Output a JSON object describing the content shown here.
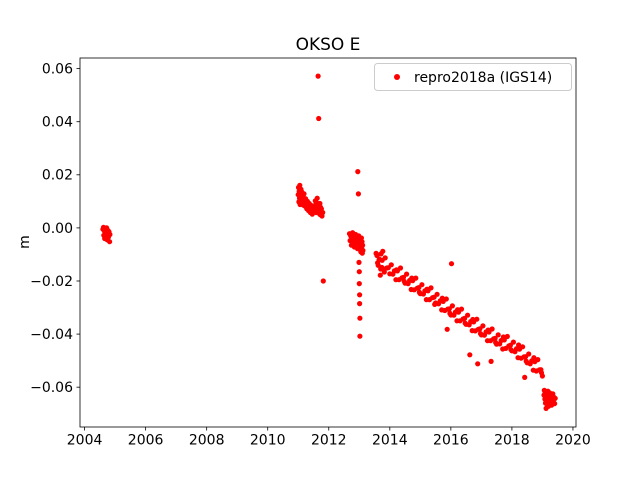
{
  "title": "OKSO E",
  "colors": {
    "marker": "#ff0000",
    "axis": "#000000",
    "background": "#ffffff",
    "legend_border": "#cccccc"
  },
  "legend": {
    "label": "repro2018a (IGS14)",
    "marker_icon": "red-dot"
  },
  "chart_data": {
    "type": "scatter",
    "title": "OKSO E",
    "xlabel": "",
    "ylabel": "m",
    "grid": false,
    "legend_position": "upper right",
    "xlim": [
      2003.85,
      2020.1
    ],
    "ylim": [
      -0.075,
      0.064
    ],
    "xticks": [
      2004,
      2006,
      2008,
      2010,
      2012,
      2014,
      2016,
      2018,
      2020
    ],
    "yticks": [
      -0.06,
      -0.04,
      -0.02,
      0.0,
      0.02,
      0.04,
      0.06
    ],
    "series": [
      {
        "name": "repro2018a (IGS14)",
        "color": "#ff0000",
        "marker": "circle",
        "points": [
          [
            2004.6,
            -0.0005
          ],
          [
            2004.62,
            0.0002
          ],
          [
            2004.63,
            -0.0028
          ],
          [
            2004.65,
            -0.0012
          ],
          [
            2004.66,
            -0.004
          ],
          [
            2004.68,
            -0.0008
          ],
          [
            2004.69,
            -0.0032
          ],
          [
            2004.71,
            -0.0018
          ],
          [
            2004.72,
            0.0
          ],
          [
            2004.74,
            -0.0045
          ],
          [
            2004.75,
            -0.0022
          ],
          [
            2004.77,
            -0.001
          ],
          [
            2004.78,
            -0.0035
          ],
          [
            2004.8,
            -0.0015
          ],
          [
            2004.82,
            -0.0052
          ],
          [
            2004.83,
            -0.0025
          ],
          [
            2011.0,
            0.0125
          ],
          [
            2011.01,
            0.0152
          ],
          [
            2011.02,
            0.0098
          ],
          [
            2011.03,
            0.0138
          ],
          [
            2011.04,
            0.0112
          ],
          [
            2011.05,
            0.016
          ],
          [
            2011.06,
            0.0088
          ],
          [
            2011.07,
            0.013
          ],
          [
            2011.08,
            0.0105
          ],
          [
            2011.09,
            0.0145
          ],
          [
            2011.1,
            0.0118
          ],
          [
            2011.11,
            0.0092
          ],
          [
            2011.12,
            0.0135
          ],
          [
            2011.13,
            0.0108
          ],
          [
            2011.14,
            0.0122
          ],
          [
            2011.15,
            0.0095
          ],
          [
            2011.16,
            0.0115
          ],
          [
            2011.17,
            0.0086
          ],
          [
            2011.18,
            0.0104
          ],
          [
            2011.19,
            0.0128
          ],
          [
            2011.2,
            0.0096
          ],
          [
            2011.22,
            0.0082
          ],
          [
            2011.24,
            0.011
          ],
          [
            2011.26,
            0.009
          ],
          [
            2011.28,
            0.0072
          ],
          [
            2011.3,
            0.01
          ],
          [
            2011.32,
            0.0084
          ],
          [
            2011.34,
            0.0065
          ],
          [
            2011.36,
            0.0092
          ],
          [
            2011.38,
            0.0076
          ],
          [
            2011.4,
            0.0058
          ],
          [
            2011.42,
            0.0085
          ],
          [
            2011.44,
            0.0068
          ],
          [
            2011.46,
            0.0052
          ],
          [
            2011.48,
            0.0078
          ],
          [
            2011.5,
            0.0062
          ],
          [
            2011.55,
            0.008
          ],
          [
            2011.56,
            0.0102
          ],
          [
            2011.57,
            0.0068
          ],
          [
            2011.58,
            0.009
          ],
          [
            2011.59,
            0.0058
          ],
          [
            2011.6,
            0.0095
          ],
          [
            2011.61,
            0.0075
          ],
          [
            2011.62,
            0.0112
          ],
          [
            2011.63,
            0.0062
          ],
          [
            2011.64,
            0.0088
          ],
          [
            2011.65,
            0.0572
          ],
          [
            2011.66,
            0.007
          ],
          [
            2011.67,
            0.0412
          ],
          [
            2011.68,
            0.0055
          ],
          [
            2011.69,
            0.0082
          ],
          [
            2011.7,
            0.0065
          ],
          [
            2011.71,
            0.0092
          ],
          [
            2011.72,
            0.005
          ],
          [
            2011.73,
            0.0078
          ],
          [
            2011.74,
            0.006
          ],
          [
            2011.76,
            0.0072
          ],
          [
            2011.78,
            0.0045
          ],
          [
            2011.8,
            0.0058
          ],
          [
            2011.82,
            -0.02
          ],
          [
            2012.68,
            -0.0022
          ],
          [
            2012.7,
            -0.0048
          ],
          [
            2012.72,
            -0.003
          ],
          [
            2012.74,
            -0.0065
          ],
          [
            2012.76,
            -0.0038
          ],
          [
            2012.78,
            -0.0018
          ],
          [
            2012.8,
            -0.0055
          ],
          [
            2012.82,
            -0.0035
          ],
          [
            2012.84,
            -0.0072
          ],
          [
            2012.86,
            -0.0045
          ],
          [
            2012.88,
            -0.0025
          ],
          [
            2012.9,
            -0.006
          ],
          [
            2012.92,
            -0.004
          ],
          [
            2012.94,
            -0.0078
          ],
          [
            2012.95,
            0.0212
          ],
          [
            2012.96,
            -0.0052
          ],
          [
            2012.97,
            0.0128
          ],
          [
            2012.98,
            -0.003
          ],
          [
            2012.99,
            -0.013
          ],
          [
            2013.0,
            -0.0165
          ],
          [
            2013.0,
            -0.021
          ],
          [
            2013.01,
            -0.0252
          ],
          [
            2013.01,
            -0.0285
          ],
          [
            2013.02,
            -0.034
          ],
          [
            2013.02,
            -0.0408
          ],
          [
            2013.03,
            -0.0068
          ],
          [
            2013.04,
            -0.0045
          ],
          [
            2013.05,
            -0.009
          ],
          [
            2013.06,
            -0.0058
          ],
          [
            2013.07,
            -0.0038
          ],
          [
            2013.08,
            -0.0075
          ],
          [
            2013.09,
            -0.0052
          ],
          [
            2013.1,
            -0.0095
          ],
          [
            2013.11,
            -0.0065
          ],
          [
            2013.12,
            -0.0085
          ],
          [
            2013.55,
            -0.0096
          ],
          [
            2013.6,
            -0.0132
          ],
          [
            2013.65,
            -0.012
          ],
          [
            2013.7,
            -0.0155
          ],
          [
            2013.75,
            -0.0122
          ],
          [
            2013.8,
            -0.0156
          ],
          [
            2013.85,
            -0.0113
          ],
          [
            2013.9,
            -0.0151
          ],
          [
            2013.95,
            -0.015
          ],
          [
            2014.0,
            -0.0173
          ],
          [
            2013.58,
            -0.0104
          ],
          [
            2013.62,
            -0.0141
          ],
          [
            2013.66,
            -0.0118
          ],
          [
            2013.69,
            -0.0178
          ],
          [
            2013.71,
            -0.0098
          ],
          [
            2013.74,
            -0.0149
          ],
          [
            2013.77,
            -0.0088
          ],
          [
            2013.82,
            -0.0166
          ],
          [
            2014.05,
            -0.0139
          ],
          [
            2014.1,
            -0.0174
          ],
          [
            2014.15,
            -0.0162
          ],
          [
            2014.2,
            -0.0195
          ],
          [
            2014.25,
            -0.0162
          ],
          [
            2014.3,
            -0.0195
          ],
          [
            2014.35,
            -0.0151
          ],
          [
            2014.4,
            -0.0188
          ],
          [
            2014.45,
            -0.0186
          ],
          [
            2014.5,
            -0.0208
          ],
          [
            2014.55,
            -0.0174
          ],
          [
            2014.6,
            -0.021
          ],
          [
            2014.65,
            -0.0198
          ],
          [
            2014.7,
            -0.0232
          ],
          [
            2014.75,
            -0.0199
          ],
          [
            2014.8,
            -0.0233
          ],
          [
            2014.85,
            -0.0189
          ],
          [
            2014.9,
            -0.0227
          ],
          [
            2014.95,
            -0.0225
          ],
          [
            2015.0,
            -0.0248
          ],
          [
            2015.05,
            -0.0214
          ],
          [
            2015.1,
            -0.0249
          ],
          [
            2015.15,
            -0.0237
          ],
          [
            2015.2,
            -0.027
          ],
          [
            2015.25,
            -0.0237
          ],
          [
            2015.3,
            -0.027
          ],
          [
            2015.35,
            -0.0226
          ],
          [
            2015.4,
            -0.0263
          ],
          [
            2015.45,
            -0.0261
          ],
          [
            2015.5,
            -0.0283
          ],
          [
            2015.55,
            -0.025
          ],
          [
            2015.6,
            -0.0286
          ],
          [
            2015.65,
            -0.0275
          ],
          [
            2015.7,
            -0.0309
          ],
          [
            2015.75,
            -0.0277
          ],
          [
            2015.8,
            -0.0311
          ],
          [
            2015.85,
            -0.0268
          ],
          [
            2015.9,
            -0.0306
          ],
          [
            2015.95,
            -0.0305
          ],
          [
            2016.0,
            -0.0328
          ],
          [
            2016.05,
            -0.0294
          ],
          [
            2016.1,
            -0.0329
          ],
          [
            2016.15,
            -0.0317
          ],
          [
            2016.2,
            -0.035
          ],
          [
            2016.25,
            -0.0317
          ],
          [
            2016.3,
            -0.035
          ],
          [
            2016.35,
            -0.0306
          ],
          [
            2016.4,
            -0.0343
          ],
          [
            2016.45,
            -0.0341
          ],
          [
            2016.5,
            -0.0363
          ],
          [
            2016.55,
            -0.0329
          ],
          [
            2016.6,
            -0.0365
          ],
          [
            2016.65,
            -0.0353
          ],
          [
            2016.7,
            -0.0387
          ],
          [
            2016.75,
            -0.0354
          ],
          [
            2016.8,
            -0.0388
          ],
          [
            2016.85,
            -0.0344
          ],
          [
            2016.9,
            -0.0382
          ],
          [
            2016.95,
            -0.038
          ],
          [
            2017.0,
            -0.0403
          ],
          [
            2017.05,
            -0.0369
          ],
          [
            2017.1,
            -0.0404
          ],
          [
            2017.15,
            -0.0392
          ],
          [
            2017.2,
            -0.0425
          ],
          [
            2017.25,
            -0.0392
          ],
          [
            2017.3,
            -0.0425
          ],
          [
            2017.35,
            -0.0381
          ],
          [
            2017.4,
            -0.0418
          ],
          [
            2017.45,
            -0.0416
          ],
          [
            2017.5,
            -0.0438
          ],
          [
            2017.55,
            -0.0403
          ],
          [
            2017.6,
            -0.0437
          ],
          [
            2017.65,
            -0.0424
          ],
          [
            2017.7,
            -0.0456
          ],
          [
            2017.75,
            -0.0422
          ],
          [
            2017.8,
            -0.0454
          ],
          [
            2017.85,
            -0.0409
          ],
          [
            2017.9,
            -0.0445
          ],
          [
            2017.95,
            -0.0442
          ],
          [
            2018.0,
            -0.0463
          ],
          [
            2018.05,
            -0.043
          ],
          [
            2018.1,
            -0.0466
          ],
          [
            2018.15,
            -0.0455
          ],
          [
            2018.2,
            -0.0489
          ],
          [
            2018.25,
            -0.0457
          ],
          [
            2018.3,
            -0.0491
          ],
          [
            2018.35,
            -0.0448
          ],
          [
            2018.4,
            -0.0486
          ],
          [
            2018.45,
            -0.0485
          ],
          [
            2018.5,
            -0.0508
          ],
          [
            2018.55,
            -0.0475
          ],
          [
            2018.6,
            -0.0512
          ],
          [
            2018.65,
            -0.0501
          ],
          [
            2018.7,
            -0.0536
          ],
          [
            2018.75,
            -0.0504
          ],
          [
            2018.8,
            -0.0539
          ],
          [
            2018.85,
            -0.0496
          ],
          [
            2018.9,
            -0.0535
          ],
          [
            2018.95,
            -0.0534
          ],
          [
            2019.0,
            -0.0558
          ],
          [
            2014.22,
            -0.0158
          ],
          [
            2014.47,
            -0.0201
          ],
          [
            2014.72,
            -0.0189
          ],
          [
            2014.97,
            -0.0243
          ],
          [
            2015.22,
            -0.0231
          ],
          [
            2015.47,
            -0.0288
          ],
          [
            2015.72,
            -0.0265
          ],
          [
            2015.88,
            -0.0382
          ],
          [
            2015.97,
            -0.0322
          ],
          [
            2016.02,
            -0.0135
          ],
          [
            2016.22,
            -0.0308
          ],
          [
            2016.47,
            -0.0359
          ],
          [
            2016.62,
            -0.0478
          ],
          [
            2016.72,
            -0.0345
          ],
          [
            2016.88,
            -0.0512
          ],
          [
            2016.97,
            -0.0398
          ],
          [
            2017.22,
            -0.0385
          ],
          [
            2017.32,
            -0.0503
          ],
          [
            2017.47,
            -0.0432
          ],
          [
            2017.72,
            -0.0411
          ],
          [
            2017.97,
            -0.0459
          ],
          [
            2018.22,
            -0.0441
          ],
          [
            2018.42,
            -0.0563
          ],
          [
            2018.47,
            -0.0502
          ],
          [
            2018.72,
            -0.0489
          ],
          [
            2018.97,
            -0.0546
          ],
          [
            2019.05,
            -0.063
          ],
          [
            2019.06,
            -0.0612
          ],
          [
            2019.08,
            -0.0645
          ],
          [
            2019.09,
            -0.062
          ],
          [
            2019.1,
            -0.066
          ],
          [
            2019.11,
            -0.0635
          ],
          [
            2019.12,
            -0.068
          ],
          [
            2019.13,
            -0.0618
          ],
          [
            2019.14,
            -0.065
          ],
          [
            2019.15,
            -0.0628
          ],
          [
            2019.16,
            -0.0665
          ],
          [
            2019.17,
            -0.064
          ],
          [
            2019.18,
            -0.0615
          ],
          [
            2019.19,
            -0.0655
          ],
          [
            2019.2,
            -0.0672
          ],
          [
            2019.21,
            -0.0632
          ],
          [
            2019.22,
            -0.0648
          ],
          [
            2019.24,
            -0.0622
          ],
          [
            2019.26,
            -0.0658
          ],
          [
            2019.28,
            -0.0636
          ],
          [
            2019.3,
            -0.0668
          ],
          [
            2019.32,
            -0.0645
          ],
          [
            2019.34,
            -0.0625
          ],
          [
            2019.36,
            -0.0655
          ],
          [
            2019.38,
            -0.0638
          ],
          [
            2019.4,
            -0.0662
          ],
          [
            2019.42,
            -0.0642
          ]
        ]
      }
    ]
  }
}
